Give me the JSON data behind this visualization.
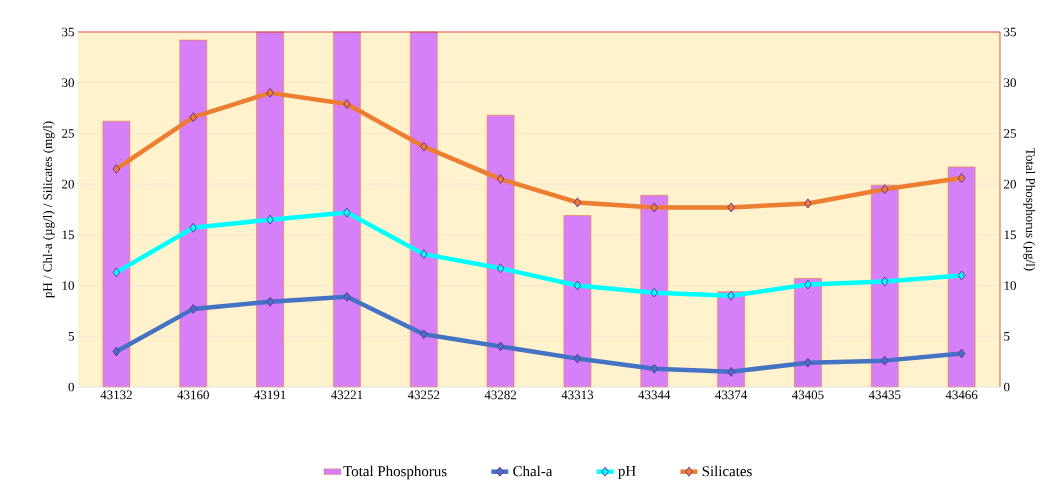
{
  "chart_data": {
    "type": "line",
    "categories": [
      "43132",
      "43160",
      "43191",
      "43221",
      "43252",
      "43282",
      "43313",
      "43344",
      "43374",
      "43405",
      "43435",
      "43466"
    ],
    "ylabel": "pH / Chl-a (µg/l) / Silicates (mg/l)",
    "y2label": "Total Phosphorus (µg/l)",
    "ylim": [
      0,
      35
    ],
    "yticks": [
      0,
      5,
      10,
      15,
      20,
      25,
      30,
      35
    ],
    "y2lim": [
      0,
      35
    ],
    "y2ticks": [
      0,
      5,
      10,
      15,
      20,
      25,
      30,
      35
    ],
    "grid": "y",
    "legend": "bottom",
    "marker": "diamond",
    "series": [
      {
        "name": "Total Phosphorus",
        "type": "bar",
        "axis": "y2",
        "color": "#d580f8",
        "values": [
          26.2,
          34.2,
          35,
          35,
          35,
          26.8,
          16.9,
          18.9,
          9.4,
          10.7,
          19.9,
          21.7
        ]
      },
      {
        "name": "Chal-a",
        "color": "#4472c4",
        "values": [
          3.5,
          7.7,
          8.4,
          8.9,
          5.2,
          4.0,
          2.8,
          1.8,
          1.5,
          2.4,
          2.6,
          3.3
        ]
      },
      {
        "name": "pH",
        "color": "#00ffff",
        "values": [
          11.3,
          15.7,
          16.5,
          17.2,
          13.1,
          11.7,
          10.0,
          9.3,
          9.0,
          10.1,
          10.4,
          11.0
        ]
      },
      {
        "name": "Silicates",
        "color": "#ed7d31",
        "values": [
          21.5,
          26.6,
          29.0,
          27.9,
          23.7,
          20.5,
          18.2,
          17.7,
          17.7,
          18.1,
          19.5,
          20.6
        ]
      }
    ]
  }
}
